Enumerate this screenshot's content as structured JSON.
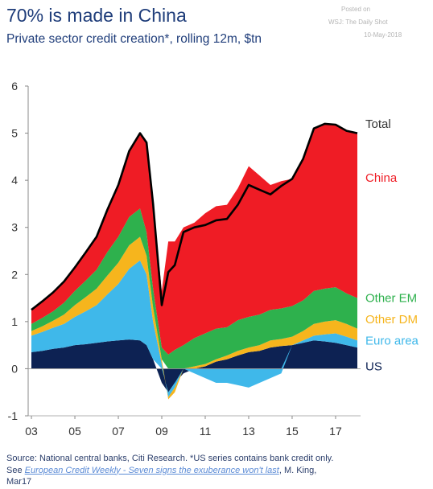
{
  "title": "70% is made in China",
  "subtitle": "Private sector credit creation*, rolling 12m, $tn",
  "posted": {
    "line1": "Posted on",
    "line2": "WSJ: The Daily Shot",
    "line3": "10-May-2018"
  },
  "footer": {
    "source": "Source: National central banks, Citi Research. *US series contains bank credit only.",
    "see_prefix": "See ",
    "link_text": "European Credit Weekly - Seven signs the exuberance won't last",
    "see_suffix": ", M. King,",
    "date": "Mar17"
  },
  "colors": {
    "US": "#0d2253",
    "Euro area": "#3fb8ea",
    "Other DM": "#f6b51d",
    "Other EM": "#2eb14d",
    "China": "#ef1c25",
    "Total": "#000000"
  },
  "chart_data": {
    "type": "area",
    "stacked": true,
    "xlim": [
      2002.85,
      2018.15
    ],
    "ylim": [
      -1,
      6
    ],
    "x_ticks": [
      2003,
      2005,
      2007,
      2009,
      2011,
      2013,
      2015,
      2017
    ],
    "x_tick_labels": [
      "03",
      "05",
      "07",
      "09",
      "11",
      "13",
      "15",
      "17"
    ],
    "y_ticks": [
      -1,
      0,
      1,
      2,
      3,
      4,
      5,
      6
    ],
    "y_tick_labels": [
      "-1",
      "0",
      "1",
      "2",
      "3",
      "4",
      "5",
      "6"
    ],
    "grid": false,
    "x": [
      2003.0,
      2003.5,
      2004.0,
      2004.5,
      2005.0,
      2005.5,
      2006.0,
      2006.5,
      2007.0,
      2007.5,
      2008.0,
      2008.3,
      2008.6,
      2009.0,
      2009.3,
      2009.6,
      2010.0,
      2010.5,
      2011.0,
      2011.5,
      2012.0,
      2012.5,
      2013.0,
      2013.5,
      2014.0,
      2014.5,
      2015.0,
      2015.5,
      2016.0,
      2016.5,
      2017.0,
      2017.5,
      2018.0
    ],
    "series": [
      {
        "name": "US",
        "values": [
          0.35,
          0.38,
          0.42,
          0.45,
          0.5,
          0.52,
          0.55,
          0.58,
          0.6,
          0.62,
          0.6,
          0.5,
          0.2,
          -0.3,
          -0.5,
          -0.3,
          -0.1,
          0.0,
          0.05,
          0.15,
          0.2,
          0.28,
          0.35,
          0.38,
          0.45,
          0.48,
          0.5,
          0.55,
          0.6,
          0.58,
          0.55,
          0.5,
          0.45
        ]
      },
      {
        "name": "Euro area",
        "values": [
          0.35,
          0.4,
          0.45,
          0.5,
          0.6,
          0.7,
          0.8,
          1.0,
          1.2,
          1.5,
          1.7,
          1.5,
          0.8,
          0.1,
          -0.1,
          -0.1,
          0.0,
          -0.1,
          -0.2,
          -0.3,
          -0.3,
          -0.35,
          -0.4,
          -0.3,
          -0.2,
          -0.1,
          0.0,
          0.05,
          0.1,
          0.15,
          0.2,
          0.18,
          0.15
        ]
      },
      {
        "name": "Other DM",
        "values": [
          0.1,
          0.12,
          0.15,
          0.2,
          0.25,
          0.3,
          0.35,
          0.4,
          0.45,
          0.5,
          0.5,
          0.4,
          0.3,
          0.1,
          -0.05,
          -0.1,
          0.0,
          0.05,
          0.05,
          0.05,
          0.08,
          0.1,
          0.1,
          0.12,
          0.15,
          0.15,
          0.18,
          0.2,
          0.25,
          0.27,
          0.28,
          0.27,
          0.25
        ]
      },
      {
        "name": "Other EM",
        "values": [
          0.15,
          0.18,
          0.2,
          0.25,
          0.3,
          0.35,
          0.4,
          0.5,
          0.55,
          0.6,
          0.6,
          0.5,
          0.4,
          0.25,
          0.3,
          0.4,
          0.5,
          0.6,
          0.65,
          0.65,
          0.6,
          0.65,
          0.65,
          0.65,
          0.65,
          0.65,
          0.65,
          0.65,
          0.7,
          0.7,
          0.7,
          0.65,
          0.65
        ]
      },
      {
        "name": "China",
        "values": [
          0.3,
          0.35,
          0.4,
          0.45,
          0.5,
          0.6,
          0.7,
          0.9,
          1.1,
          1.4,
          1.6,
          1.9,
          1.8,
          1.2,
          2.4,
          2.3,
          2.5,
          2.45,
          2.55,
          2.6,
          2.6,
          2.8,
          3.2,
          2.95,
          2.65,
          2.7,
          2.7,
          3.0,
          3.45,
          3.5,
          3.45,
          3.45,
          3.5
        ]
      }
    ],
    "total": {
      "name": "Total",
      "values": [
        1.25,
        1.43,
        1.62,
        1.85,
        2.15,
        2.47,
        2.8,
        3.38,
        3.9,
        4.62,
        5.0,
        4.8,
        3.5,
        1.35,
        2.05,
        2.2,
        2.9,
        3.0,
        3.05,
        3.15,
        3.18,
        3.48,
        3.9,
        3.8,
        3.7,
        3.88,
        4.03,
        4.45,
        5.1,
        5.2,
        5.18,
        5.05,
        5.0
      ]
    },
    "legend": [
      {
        "label": "Total",
        "color": "#333333",
        "y": 5.2
      },
      {
        "label": "China",
        "color": "#ef1c25",
        "y": 4.05
      },
      {
        "label": "Other EM",
        "color": "#2eb14d",
        "y": 1.5
      },
      {
        "label": "Other DM",
        "color": "#f6b51d",
        "y": 1.05
      },
      {
        "label": "Euro area",
        "color": "#3fb8ea",
        "y": 0.6
      },
      {
        "label": "US",
        "color": "#0d2253",
        "y": 0.05
      }
    ]
  }
}
